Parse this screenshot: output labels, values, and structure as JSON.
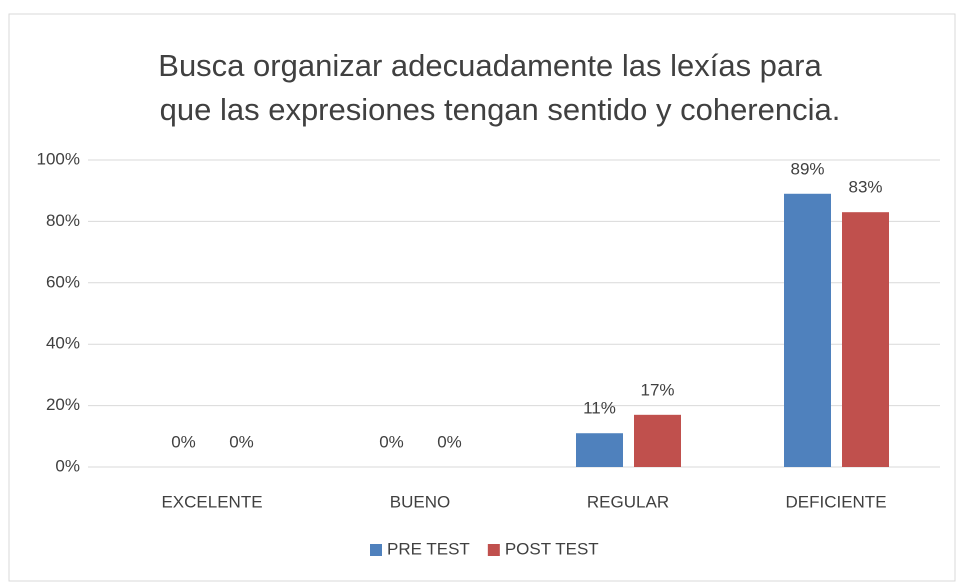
{
  "chart_data": {
    "type": "bar",
    "title": [
      "Busca organizar adecuadamente las lexías para",
      "que las expresiones tengan sentido y coherencia."
    ],
    "categories": [
      "EXCELENTE",
      "BUENO",
      "REGULAR",
      "DEFICIENTE"
    ],
    "series": [
      {
        "name": "PRE TEST",
        "color": "#4f81bd",
        "values": [
          0,
          0,
          11,
          89
        ],
        "value_labels": [
          "0%",
          "0%",
          "11%",
          "89%"
        ]
      },
      {
        "name": "POST TEST",
        "color": "#c0504d",
        "values": [
          0,
          0,
          17,
          83
        ],
        "value_labels": [
          "0%",
          "0%",
          "17%",
          "83%"
        ]
      }
    ],
    "ylim": [
      0,
      100
    ],
    "yticks": [
      {
        "value": 0,
        "label": "0%"
      },
      {
        "value": 20,
        "label": "20%"
      },
      {
        "value": 40,
        "label": "40%"
      },
      {
        "value": 60,
        "label": "60%"
      },
      {
        "value": 80,
        "label": "80%"
      },
      {
        "value": 100,
        "label": "100%"
      }
    ],
    "grid": true,
    "legend": "bottom"
  }
}
